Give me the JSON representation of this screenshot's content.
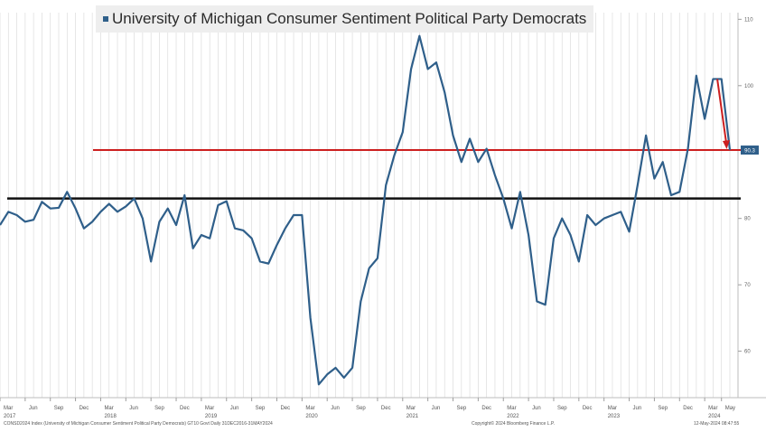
{
  "legend": {
    "label": "University of Michigan Consumer Sentiment Political Party Democrats"
  },
  "colors": {
    "series": "#2f5f8a",
    "black_line": "#111111",
    "red_line": "#cc1f1f",
    "grid": "#dcdcdc"
  },
  "chart_data": {
    "type": "line",
    "title": "",
    "xlabel": "",
    "ylabel": "",
    "ylim": [
      53,
      111
    ],
    "y_ticks": [
      60,
      70,
      80,
      100,
      110
    ],
    "y_tick_labels": [
      "60",
      "70",
      "80",
      "100",
      "110"
    ],
    "grid": true,
    "legend_position": "top-left",
    "x_ticks": [
      {
        "label": "Mar",
        "year": "2017",
        "index": 0
      },
      {
        "label": "Jun",
        "year": "",
        "index": 3
      },
      {
        "label": "Sep",
        "year": "",
        "index": 6
      },
      {
        "label": "Dec",
        "year": "",
        "index": 9
      },
      {
        "label": "Mar",
        "year": "2018",
        "index": 12
      },
      {
        "label": "Jun",
        "year": "",
        "index": 15
      },
      {
        "label": "Sep",
        "year": "",
        "index": 18
      },
      {
        "label": "Dec",
        "year": "",
        "index": 21
      },
      {
        "label": "Mar",
        "year": "2019",
        "index": 24
      },
      {
        "label": "Jun",
        "year": "",
        "index": 27
      },
      {
        "label": "Sep",
        "year": "",
        "index": 30
      },
      {
        "label": "Dec",
        "year": "",
        "index": 33
      },
      {
        "label": "Mar",
        "year": "2020",
        "index": 36
      },
      {
        "label": "Jun",
        "year": "",
        "index": 39
      },
      {
        "label": "Sep",
        "year": "",
        "index": 42
      },
      {
        "label": "Dec",
        "year": "",
        "index": 45
      },
      {
        "label": "Mar",
        "year": "2021",
        "index": 48
      },
      {
        "label": "Jun",
        "year": "",
        "index": 51
      },
      {
        "label": "Sep",
        "year": "",
        "index": 54
      },
      {
        "label": "Dec",
        "year": "",
        "index": 57
      },
      {
        "label": "Mar",
        "year": "2022",
        "index": 60
      },
      {
        "label": "Jun",
        "year": "",
        "index": 63
      },
      {
        "label": "Sep",
        "year": "",
        "index": 66
      },
      {
        "label": "Dec",
        "year": "",
        "index": 69
      },
      {
        "label": "Mar",
        "year": "2023",
        "index": 72
      },
      {
        "label": "Jun",
        "year": "",
        "index": 75
      },
      {
        "label": "Sep",
        "year": "",
        "index": 78
      },
      {
        "label": "Dec",
        "year": "",
        "index": 81
      },
      {
        "label": "Mar",
        "year": "2024",
        "index": 84
      },
      {
        "label": "May",
        "year": "",
        "index": 86
      }
    ],
    "series": [
      {
        "name": "University of Michigan Consumer Sentiment Political Party Democrats",
        "values": [
          79.0,
          81.0,
          80.5,
          79.5,
          79.8,
          82.5,
          81.5,
          81.6,
          84.0,
          81.5,
          78.5,
          79.5,
          81.0,
          82.2,
          81.0,
          81.8,
          83.0,
          80.0,
          73.5,
          79.5,
          81.5,
          79.0,
          83.5,
          75.5,
          77.5,
          77.0,
          82.0,
          82.6,
          78.5,
          78.2,
          77.0,
          73.5,
          73.2,
          76.0,
          78.5,
          80.5,
          80.5,
          65.0,
          55.0,
          56.5,
          57.5,
          56.0,
          57.5,
          67.5,
          72.5,
          74.0,
          85.0,
          89.5,
          93.0,
          102.5,
          107.5,
          102.5,
          103.5,
          99.0,
          92.5,
          88.5,
          92.0,
          88.5,
          90.5,
          86.5,
          83.0,
          78.5,
          84.0,
          77.5,
          67.5,
          67.0,
          77.0,
          80.0,
          77.5,
          73.5,
          80.5,
          79.0,
          80.0,
          80.5,
          81.0,
          78.0,
          85.0,
          92.5,
          86.0,
          88.5,
          83.5,
          84.0,
          90.5,
          101.5,
          95.0,
          101.0,
          101.0,
          90.3
        ]
      }
    ],
    "reference_lines": [
      {
        "value": 83.0,
        "color": "black"
      },
      {
        "value": 90.3,
        "color": "red"
      }
    ],
    "last_value_label": "90.3",
    "annotation": {
      "type": "arrow",
      "color": "red",
      "from_index": 85.5,
      "from_value": 101.0,
      "to_index": 87,
      "to_value": 90.3
    }
  },
  "footer": {
    "left": "CONSD2024 Index (University of Michigan Consumer Sentiment Political Party Democrats) GT10 Govt Daily 31DEC2016-31MAY2024",
    "center": "Copyright© 2024 Bloomberg Finance L.P.",
    "right": "12-May-2024 08:47:55"
  }
}
